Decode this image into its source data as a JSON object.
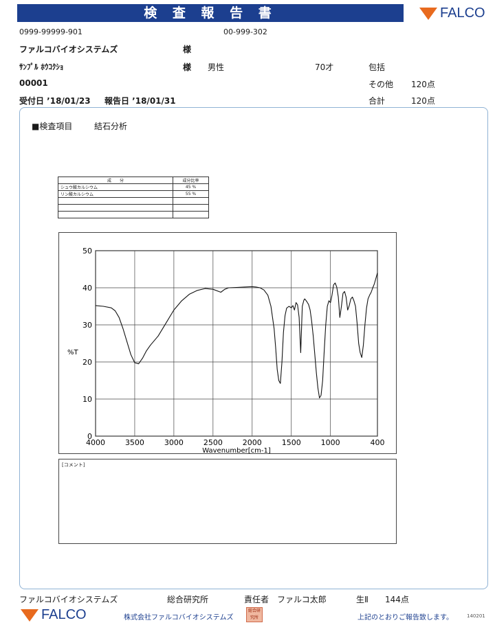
{
  "header": {
    "title": "検 査 報 告 書",
    "brand": "FALCO",
    "client_code": "0999-99999-901",
    "report_code": "00-999-302",
    "client_name": "ファルコバイオシステムズ",
    "client_suffix": "様",
    "sample_name": "ｻﾝﾌﾟﾙ ﾎｳｺｸｼｮ",
    "sample_suffix": "様",
    "sex": "男性",
    "age": "70才",
    "category_label": "包括",
    "id": "00001",
    "other_label": "その他",
    "other_points": "120点",
    "received": "受付日 ’18/01/23",
    "reported": "報告日 ’18/01/31",
    "total_label": "合計",
    "total_points": "120点"
  },
  "section": {
    "heading": "■検査項目",
    "test_name": "結石分析"
  },
  "composition": {
    "col_component": "成　　分",
    "col_ratio": "成分比率",
    "rows": [
      {
        "name": "シュウ酸カルシウム",
        "ratio": "45 %"
      },
      {
        "name": "リン酸カルシウム",
        "ratio": "55 %"
      },
      {
        "name": "",
        "ratio": ""
      },
      {
        "name": "",
        "ratio": ""
      },
      {
        "name": "",
        "ratio": ""
      }
    ]
  },
  "chart_data": {
    "type": "line",
    "xlabel": "Wavenumber[cm-1]",
    "ylabel": "%T",
    "xlim": [
      4000,
      400
    ],
    "ylim": [
      0,
      50
    ],
    "x_ticks": [
      4000,
      3500,
      3000,
      2500,
      2000,
      1500,
      1000,
      400
    ],
    "y_ticks": [
      0,
      10,
      20,
      30,
      40,
      50
    ],
    "grid": true,
    "series": [
      {
        "x": [
          4000,
          3900,
          3800,
          3750,
          3700,
          3650,
          3600,
          3550,
          3500,
          3450,
          3400,
          3350,
          3300,
          3200,
          3100,
          3000,
          2900,
          2800,
          2700,
          2600,
          2500,
          2400,
          2350,
          2300,
          2200,
          2100,
          2000,
          1950,
          1900,
          1850,
          1800,
          1760,
          1720,
          1700,
          1680,
          1660,
          1640,
          1620,
          1600,
          1580,
          1560,
          1530,
          1500,
          1480,
          1460,
          1440,
          1420,
          1400,
          1380,
          1360,
          1340,
          1330,
          1320,
          1300,
          1280,
          1260,
          1240,
          1220,
          1200,
          1180,
          1160,
          1140,
          1120,
          1100,
          1080,
          1060,
          1040,
          1020,
          1000,
          980,
          960,
          940,
          920,
          900,
          880,
          860,
          840,
          820,
          800,
          780,
          760,
          740,
          720,
          700,
          680,
          660,
          640,
          620,
          600,
          580,
          560,
          540,
          520,
          500,
          480,
          460,
          440,
          420,
          400
        ],
        "y": [
          35.2,
          35,
          34.6,
          33.8,
          32,
          29,
          25.5,
          22,
          19.8,
          19.5,
          21,
          23,
          24.5,
          27,
          30.5,
          34,
          36.5,
          38.3,
          39.3,
          39.8,
          39.6,
          38.8,
          39.6,
          40,
          40.1,
          40.2,
          40.3,
          40.2,
          40,
          39.4,
          38,
          35,
          29,
          24,
          18,
          15,
          14.2,
          20,
          28,
          32.5,
          34.5,
          35,
          34.6,
          35.2,
          34,
          36,
          35.4,
          32,
          22.5,
          35,
          36.6,
          37,
          36.8,
          36.2,
          35.5,
          34,
          31,
          27,
          22,
          17,
          13,
          10.3,
          11,
          15,
          23,
          30,
          35,
          36.5,
          36,
          38,
          40.8,
          41.3,
          40.2,
          37.5,
          32,
          35,
          38.5,
          39,
          37.5,
          34,
          35.2,
          37,
          37.5,
          36.5,
          35,
          30.5,
          25,
          22.5,
          21.2,
          24.5,
          30,
          34.5,
          37,
          38,
          38.8,
          40,
          41,
          42.5,
          44
        ]
      }
    ]
  },
  "comment": {
    "label": "[コメント]",
    "text": ""
  },
  "footer": {
    "org": "ファルコバイオシステムズ",
    "lab": "総合研究所",
    "responsible_label": "責任者",
    "responsible_name": "ファルコ太郎",
    "item": "生Ⅱ",
    "item_points": "144点",
    "company": "株式会社ファルコバイオシステムズ",
    "brand": "FALCO",
    "stamp": "総合研究所",
    "notice": "上記のとおりご報告致します。",
    "doc_no": "140201"
  }
}
